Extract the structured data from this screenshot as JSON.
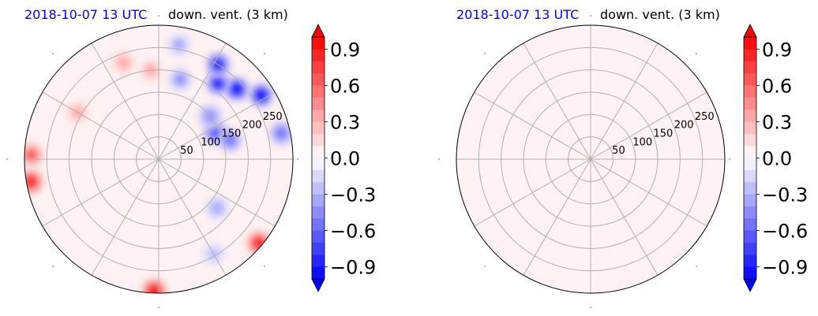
{
  "chart_data": [
    {
      "type": "heatmap",
      "projection": "polar",
      "panel": "left",
      "time_label": "2018-10-07 13 UTC",
      "title": "down. vent. (3 km)",
      "radial_ticks": [
        "50",
        "100",
        "150",
        "200",
        "250"
      ],
      "radial_values": [
        50,
        100,
        150,
        200,
        250
      ],
      "r_max": 300,
      "angular_grid_step_deg": 30,
      "grid": true,
      "field_description": "mostly near-zero values with strong negative (blue) patches in the upper-right quadrant and scattered positive (red) speckles near the edges",
      "blobs": [
        {
          "r": 235,
          "theta": 42,
          "value": -0.95
        },
        {
          "r": 270,
          "theta": 32,
          "value": -0.9
        },
        {
          "r": 215,
          "theta": 52,
          "value": -0.8
        },
        {
          "r": 250,
          "theta": 58,
          "value": -0.85
        },
        {
          "r": 140,
          "theta": 25,
          "value": -0.7
        },
        {
          "r": 165,
          "theta": 15,
          "value": -0.6
        },
        {
          "r": 150,
          "theta": 40,
          "value": -0.5
        },
        {
          "r": 280,
          "theta": 12,
          "value": -0.6
        },
        {
          "r": 185,
          "theta": 75,
          "value": -0.4
        },
        {
          "r": 260,
          "theta": 80,
          "value": -0.3
        },
        {
          "r": 170,
          "theta": -40,
          "value": -0.35
        },
        {
          "r": 245,
          "theta": -60,
          "value": -0.25
        },
        {
          "r": 230,
          "theta": 110,
          "value": 0.35
        },
        {
          "r": 210,
          "theta": 150,
          "value": 0.3
        },
        {
          "r": 285,
          "theta": 178,
          "value": 0.6
        },
        {
          "r": 290,
          "theta": 190,
          "value": 0.9
        },
        {
          "r": 295,
          "theta": 268,
          "value": 0.95
        },
        {
          "r": 292,
          "theta": 320,
          "value": 0.9
        },
        {
          "r": 200,
          "theta": 95,
          "value": 0.3
        }
      ],
      "colorbar": {
        "cmap": "bwr",
        "vmin": -1.0,
        "vmax": 1.0,
        "levels": 20,
        "ticks": [
          0.9,
          0.6,
          0.3,
          0.0,
          -0.3,
          -0.6,
          -0.9
        ],
        "tick_labels": [
          "0.9",
          "0.6",
          "0.3",
          "0.0",
          "−0.3",
          "−0.6",
          "−0.9"
        ]
      }
    },
    {
      "type": "heatmap",
      "projection": "polar",
      "panel": "right",
      "time_label": "2018-10-07 13 UTC",
      "title": "down. vent. (3 km)",
      "radial_ticks": [
        "50",
        "100",
        "150",
        "200",
        "250"
      ],
      "radial_values": [
        50,
        100,
        150,
        200,
        250
      ],
      "r_max": 300,
      "angular_grid_step_deg": 30,
      "grid": true,
      "field_description": "uniform field just above zero (very light pink everywhere)",
      "uniform_value": 0.02,
      "blobs": [],
      "colorbar": {
        "cmap": "bwr",
        "vmin": -1.0,
        "vmax": 1.0,
        "levels": 20,
        "ticks": [
          0.9,
          0.6,
          0.3,
          0.0,
          -0.3,
          -0.6,
          -0.9
        ],
        "tick_labels": [
          "0.9",
          "0.6",
          "0.3",
          "0.0",
          "−0.3",
          "−0.6",
          "−0.9"
        ]
      }
    }
  ]
}
